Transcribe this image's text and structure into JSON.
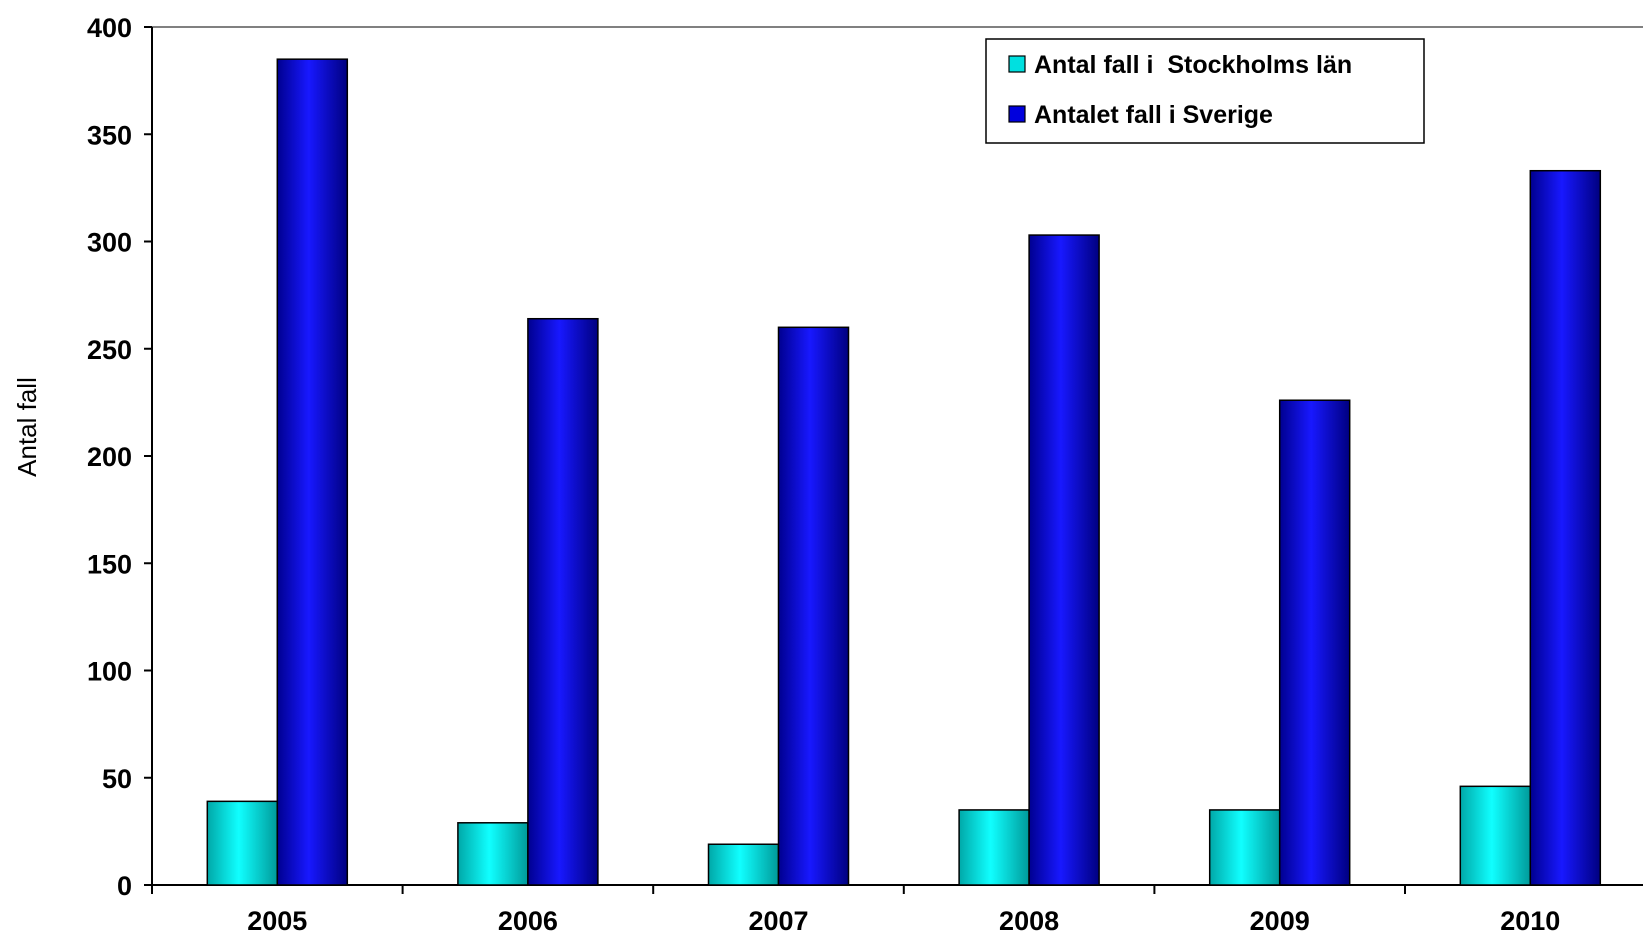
{
  "chart_data": {
    "type": "bar",
    "ylabel": "Antal fall",
    "xlabel": "",
    "ylim": [
      0,
      400
    ],
    "yticks": [
      0,
      50,
      100,
      150,
      200,
      250,
      300,
      350,
      400
    ],
    "categories": [
      "2005",
      "2006",
      "2007",
      "2008",
      "2009",
      "2010"
    ],
    "series": [
      {
        "name": "Antal fall i  Stockholms län",
        "values": [
          39,
          29,
          19,
          35,
          35,
          46
        ],
        "color": "#00e0e0"
      },
      {
        "name": "Antalet fall i Sverige",
        "values": [
          385,
          264,
          260,
          303,
          226,
          333
        ],
        "color": "#0000dd"
      }
    ],
    "legend": "top-right",
    "grid": false
  }
}
